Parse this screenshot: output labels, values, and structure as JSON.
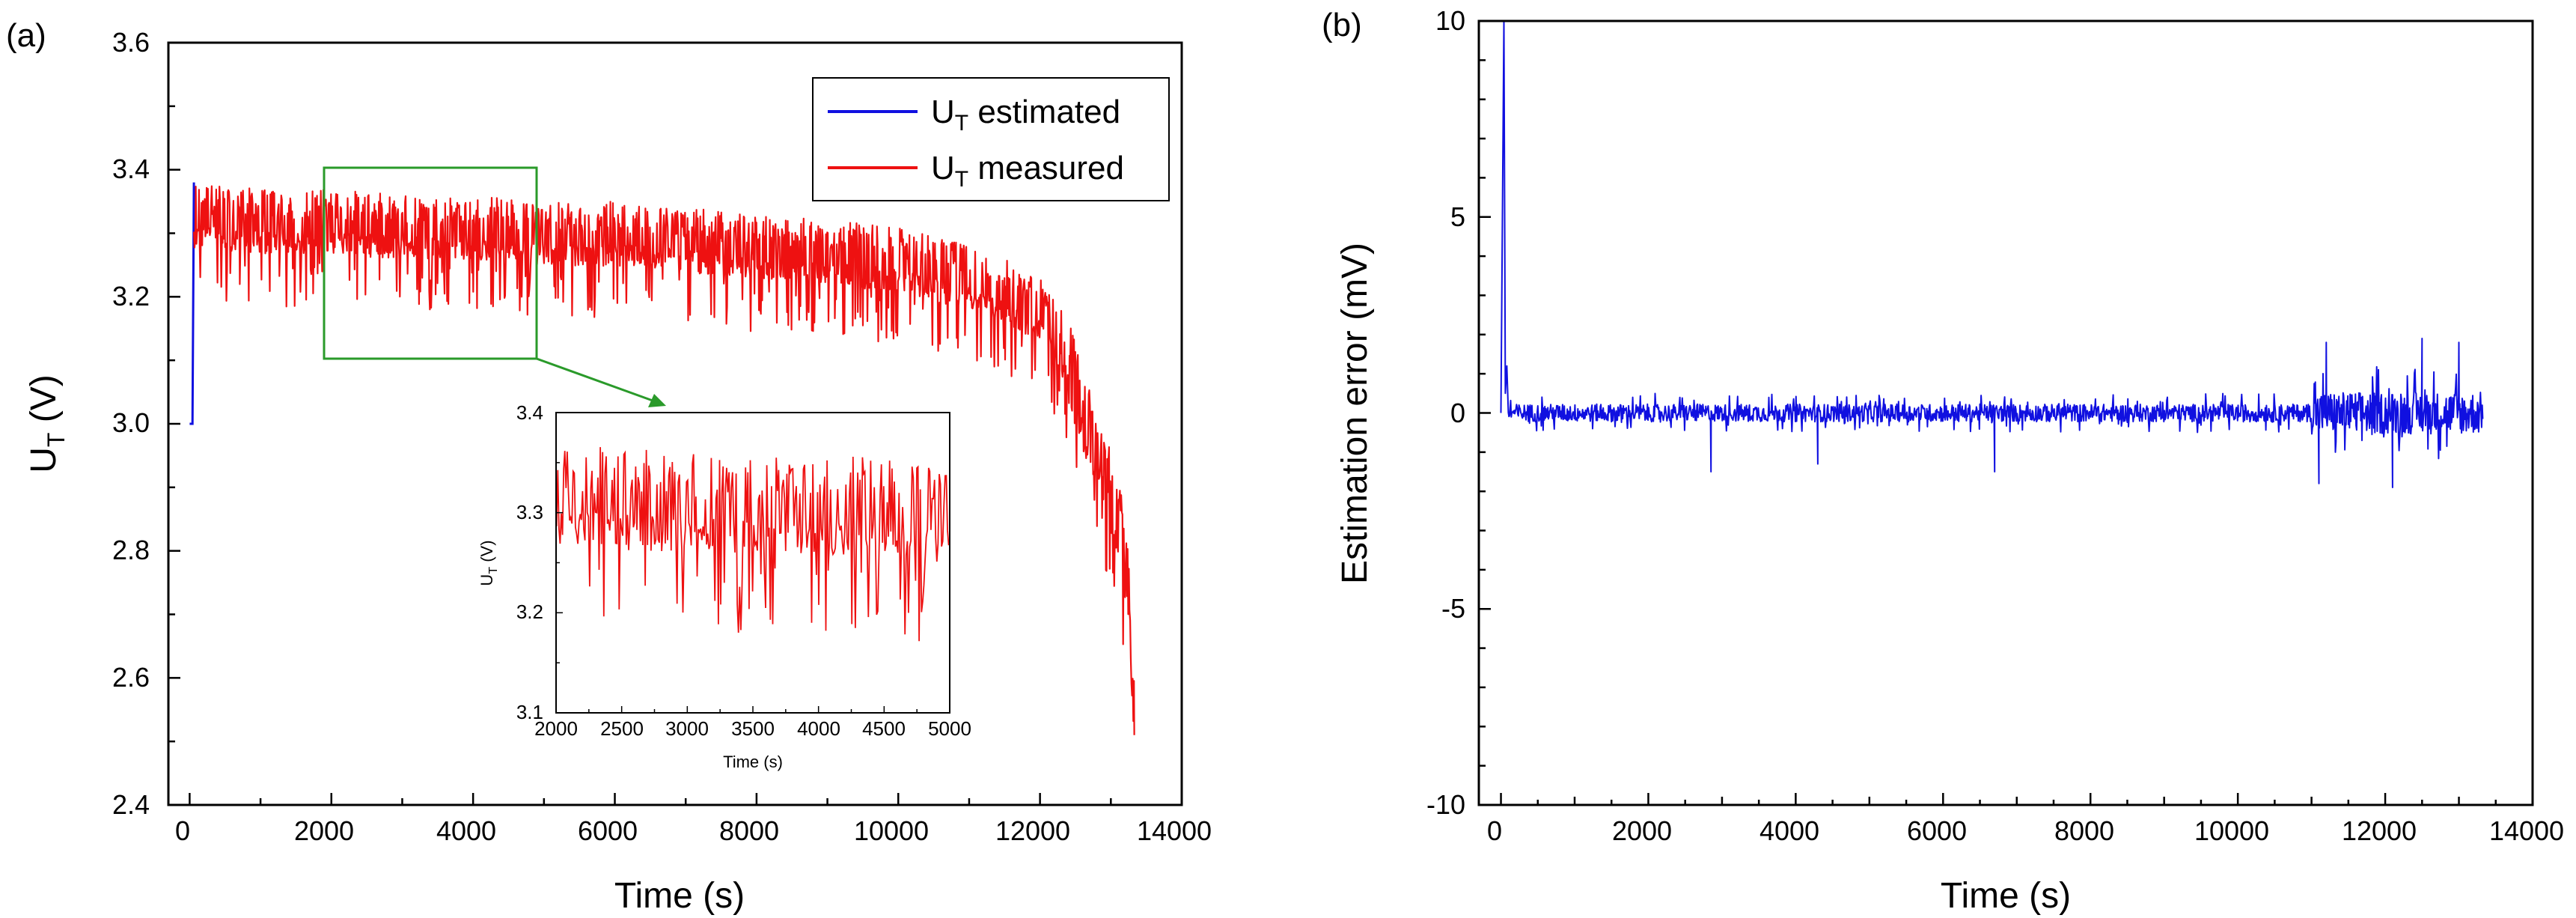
{
  "figure": {
    "panels": [
      {
        "panel_label": "(a)",
        "xlabel": "Time (s)",
        "ylabel_main": "U",
        "ylabel_sub": "T",
        "ylabel_unit": " (V)",
        "xlim": [
          -300,
          14000
        ],
        "ylim": [
          2.4,
          3.6
        ],
        "xticks": [
          "0",
          "2000",
          "4000",
          "6000",
          "8000",
          "10000",
          "12000",
          "14000"
        ],
        "yticks": [
          "2.4",
          "2.6",
          "2.8",
          "3.0",
          "3.2",
          "3.4",
          "3.6"
        ],
        "legend": [
          {
            "main": "U",
            "sub": "T",
            "rest": " estimated",
            "color": "#1010e0"
          },
          {
            "main": "U",
            "sub": "T",
            "rest": " measured",
            "color": "#ee1111"
          }
        ],
        "zoom_box": {
          "x_range": [
            2000,
            5000
          ],
          "y_range": [
            3.1,
            3.4
          ],
          "color": "#2a9a2a"
        },
        "inset": {
          "xlabel": "Time (s)",
          "ylabel_main": "U",
          "ylabel_sub": "T",
          "ylabel_unit": " (V)",
          "xlim": [
            2000,
            5000
          ],
          "ylim": [
            3.1,
            3.4
          ],
          "xticks": [
            "2000",
            "2500",
            "3000",
            "3500",
            "4000",
            "4500",
            "5000"
          ],
          "yticks": [
            "3.1",
            "3.2",
            "3.3",
            "3.4"
          ]
        }
      },
      {
        "panel_label": "(b)",
        "xlabel": "Time (s)",
        "ylabel": "Estimation error (mV)",
        "xlim": [
          -300,
          14000
        ],
        "ylim": [
          -10,
          10
        ],
        "xticks": [
          "0",
          "2000",
          "4000",
          "6000",
          "8000",
          "10000",
          "12000",
          "14000"
        ],
        "yticks": [
          "-10",
          "-5",
          "0",
          "5",
          "10"
        ]
      }
    ]
  },
  "chart_data": [
    {
      "type": "line",
      "title": "",
      "xlabel": "Time (s)",
      "ylabel": "U_T (V)",
      "xlim": [
        -300,
        14000
      ],
      "ylim": [
        2.4,
        3.6
      ],
      "series": [
        {
          "name": "U_T estimated",
          "color": "#1010e0",
          "x": [
            0,
            40,
            60
          ],
          "y": [
            3.0,
            3.0,
            3.38
          ]
        },
        {
          "name": "U_T measured",
          "color": "#ee1111",
          "trend_x": [
            0,
            1000,
            2000,
            3000,
            4000,
            5000,
            6000,
            7000,
            8000,
            9000,
            10000,
            11000,
            11500,
            12000,
            12300,
            12500,
            12700,
            12900,
            13100,
            13250,
            13330
          ],
          "trend_y": [
            3.32,
            3.31,
            3.31,
            3.3,
            3.3,
            3.29,
            3.29,
            3.28,
            3.27,
            3.26,
            3.25,
            3.22,
            3.2,
            3.17,
            3.12,
            3.05,
            2.98,
            2.92,
            2.85,
            2.72,
            2.52
          ],
          "band_half_width": 0.06,
          "end_point": [
            13330,
            2.51
          ]
        }
      ]
    },
    {
      "type": "line",
      "title": "",
      "xlabel": "Time (s)",
      "ylabel": "Estimation error (mV)",
      "xlim": [
        -300,
        14000
      ],
      "ylim": [
        -10,
        10
      ],
      "series": [
        {
          "name": "Estimation error",
          "color": "#1010e0",
          "initial_spike": {
            "x": [
              0,
              40,
              60,
              80
            ],
            "y": [
              0,
              10,
              0.5,
              1.2
            ]
          },
          "noise_amplitude": 0.5,
          "late_noise_amplitude": 1.2,
          "late_noise_start": 11000,
          "x_end": 13330,
          "outliers": [
            {
              "x": 2850,
              "y": -1.5
            },
            {
              "x": 4300,
              "y": -1.3
            },
            {
              "x": 6700,
              "y": -1.5
            },
            {
              "x": 11200,
              "y": 1.8
            },
            {
              "x": 11100,
              "y": -1.8
            },
            {
              "x": 12500,
              "y": 1.9
            },
            {
              "x": 12100,
              "y": -1.9
            },
            {
              "x": 13000,
              "y": 1.8
            }
          ]
        }
      ]
    }
  ]
}
